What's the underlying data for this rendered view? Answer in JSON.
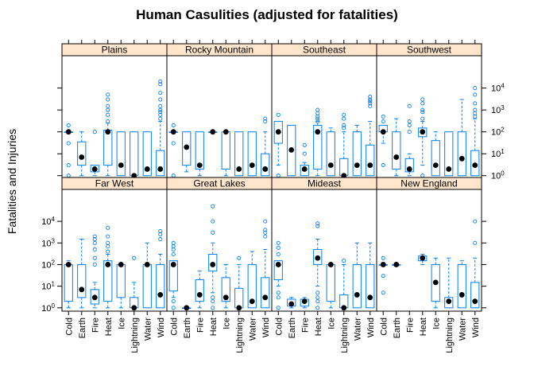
{
  "chart_data": {
    "type": "boxplot",
    "title": "Human Casulities (adjusted for fatalities)",
    "ylabel": "Fatalities and Injuries",
    "xlabel": "",
    "yscale": "log10",
    "ylim": [
      0.7,
      300000
    ],
    "y_ticks": [
      {
        "value": 1,
        "base": "10",
        "exp": "0"
      },
      {
        "value": 10,
        "base": "10",
        "exp": "1"
      },
      {
        "value": 100,
        "base": "10",
        "exp": "2"
      },
      {
        "value": 1000,
        "base": "10",
        "exp": "3"
      },
      {
        "value": 10000,
        "base": "10",
        "exp": "4"
      }
    ],
    "categories": [
      "Cold",
      "Earth",
      "Fire",
      "Heat",
      "Ice",
      "Lightning",
      "Water",
      "Wind"
    ],
    "panels": [
      {
        "region": "Plains",
        "row": 0,
        "col": 0,
        "boxes": [
          {
            "cat": "Cold",
            "q1": 100,
            "med": 100,
            "q3": 100,
            "lo": 100,
            "hi": 100,
            "out": [
              1,
              3,
              30,
              200
            ]
          },
          {
            "cat": "Earth",
            "q1": 3,
            "med": 7,
            "q3": 35,
            "lo": 1,
            "hi": 100,
            "out": []
          },
          {
            "cat": "Fire",
            "q1": 1.5,
            "med": 2,
            "q3": 3,
            "lo": 1,
            "hi": 3,
            "out": [
              100
            ]
          },
          {
            "cat": "Heat",
            "q1": 3,
            "med": 100,
            "q3": 120,
            "lo": 1,
            "hi": 250,
            "out": [
              300,
              600,
              1000,
              1500,
              3000,
              5000
            ]
          },
          {
            "cat": "Ice",
            "q1": 1,
            "med": 3,
            "q3": 100,
            "lo": 1,
            "hi": 100,
            "out": []
          },
          {
            "cat": "Lightning",
            "q1": 1,
            "med": 1,
            "q3": 100,
            "lo": 1,
            "hi": 100,
            "out": []
          },
          {
            "cat": "Water",
            "q1": 1,
            "med": 2,
            "q3": 100,
            "lo": 1,
            "hi": 100,
            "out": []
          },
          {
            "cat": "Wind",
            "q1": 1,
            "med": 2,
            "q3": 14,
            "lo": 1,
            "hi": 300,
            "out": [
              400,
              600,
              800,
              1000,
              1500,
              3000,
              6000,
              15000,
              20000
            ]
          }
        ]
      },
      {
        "region": "Rocky Mountain",
        "row": 0,
        "col": 1,
        "boxes": [
          {
            "cat": "Cold",
            "q1": 100,
            "med": 100,
            "q3": 100,
            "lo": 100,
            "hi": 100,
            "out": [
              1,
              30,
              200
            ]
          },
          {
            "cat": "Earth",
            "q1": 3,
            "med": 20,
            "q3": 100,
            "lo": 1.5,
            "hi": 100,
            "out": []
          },
          {
            "cat": "Fire",
            "q1": 2,
            "med": 3,
            "q3": 100,
            "lo": 1,
            "hi": 100,
            "out": []
          },
          {
            "cat": "Heat",
            "q1": 100,
            "med": 100,
            "q3": 100,
            "lo": 100,
            "hi": 100,
            "out": []
          },
          {
            "cat": "Ice",
            "q1": 2,
            "med": 100,
            "q3": 100,
            "lo": 1,
            "hi": 100,
            "out": []
          },
          {
            "cat": "Lightning",
            "q1": 1,
            "med": 2,
            "q3": 100,
            "lo": 1,
            "hi": 100,
            "out": []
          },
          {
            "cat": "Water",
            "q1": 1,
            "med": 3,
            "q3": 100,
            "lo": 1,
            "hi": 100,
            "out": []
          },
          {
            "cat": "Wind",
            "q1": 1,
            "med": 2,
            "q3": 10,
            "lo": 1,
            "hi": 100,
            "out": [
              300,
              400
            ]
          }
        ]
      },
      {
        "region": "Southeast",
        "row": 0,
        "col": 2,
        "boxes": [
          {
            "cat": "Cold",
            "q1": 30,
            "med": 100,
            "q3": 300,
            "lo": 3,
            "hi": 300,
            "out": [
              1,
              600
            ]
          },
          {
            "cat": "Earth",
            "q1": 1,
            "med": 15,
            "q3": 200,
            "lo": 1,
            "hi": 200,
            "out": []
          },
          {
            "cat": "Fire",
            "q1": 1,
            "med": 2,
            "q3": 3,
            "lo": 1,
            "hi": 4,
            "out": [
              10,
              25
            ]
          },
          {
            "cat": "Heat",
            "q1": 2,
            "med": 100,
            "q3": 200,
            "lo": 1,
            "hi": 300,
            "out": [
              300,
              400,
              500,
              700,
              1000
            ]
          },
          {
            "cat": "Ice",
            "q1": 1,
            "med": 3,
            "q3": 100,
            "lo": 1,
            "hi": 150,
            "out": []
          },
          {
            "cat": "Lightning",
            "q1": 1,
            "med": 1,
            "q3": 6,
            "lo": 1,
            "hi": 100,
            "out": [
              150,
              200,
              400,
              600
            ]
          },
          {
            "cat": "Water",
            "q1": 1,
            "med": 3,
            "q3": 100,
            "lo": 1,
            "hi": 200,
            "out": []
          },
          {
            "cat": "Wind",
            "q1": 1,
            "med": 3,
            "q3": 25,
            "lo": 1,
            "hi": 300,
            "out": [
              1500,
              2000,
              2500,
              3000,
              4000
            ]
          }
        ]
      },
      {
        "region": "Southwest",
        "row": 0,
        "col": 3,
        "boxes": [
          {
            "cat": "Cold",
            "q1": 100,
            "med": 100,
            "q3": 200,
            "lo": 30,
            "hi": 200,
            "out": [
              3,
              300,
              500
            ]
          },
          {
            "cat": "Earth",
            "q1": 2,
            "med": 7,
            "q3": 100,
            "lo": 1,
            "hi": 400,
            "out": []
          },
          {
            "cat": "Fire",
            "q1": 1.5,
            "med": 2,
            "q3": 6,
            "lo": 1,
            "hi": 10,
            "out": [
              100,
              200,
              300,
              1500
            ]
          },
          {
            "cat": "Heat",
            "q1": 60,
            "med": 100,
            "q3": 150,
            "lo": 3,
            "hi": 300,
            "out": [
              1,
              400,
              800,
              1000,
              2000,
              3000
            ]
          },
          {
            "cat": "Ice",
            "q1": 1,
            "med": 3,
            "q3": 40,
            "lo": 1,
            "hi": 100,
            "out": []
          },
          {
            "cat": "Lightning",
            "q1": 1,
            "med": 2,
            "q3": 100,
            "lo": 1,
            "hi": 100,
            "out": []
          },
          {
            "cat": "Water",
            "q1": 1,
            "med": 6,
            "q3": 100,
            "lo": 1,
            "hi": 3000,
            "out": []
          },
          {
            "cat": "Wind",
            "q1": 1,
            "med": 3,
            "q3": 14,
            "lo": 1,
            "hi": 400,
            "out": [
              500,
              700,
              1000,
              2000,
              5000,
              10000
            ]
          }
        ]
      },
      {
        "region": "Far West",
        "row": 1,
        "col": 0,
        "boxes": [
          {
            "cat": "Cold",
            "q1": 2,
            "med": 100,
            "q3": 100,
            "lo": 1,
            "hi": 150,
            "out": []
          },
          {
            "cat": "Earth",
            "q1": 3,
            "med": 7,
            "q3": 100,
            "lo": 1,
            "hi": 1500,
            "out": []
          },
          {
            "cat": "Fire",
            "q1": 1.5,
            "med": 3,
            "q3": 7,
            "lo": 1,
            "hi": 15,
            "out": [
              100,
              200,
              500,
              1000,
              1500,
              2000
            ]
          },
          {
            "cat": "Heat",
            "q1": 2,
            "med": 100,
            "q3": 150,
            "lo": 1,
            "hi": 300,
            "out": [
              400,
              700,
              1000,
              2000,
              5000
            ]
          },
          {
            "cat": "Ice",
            "q1": 3,
            "med": 100,
            "q3": 100,
            "lo": 1,
            "hi": 100,
            "out": []
          },
          {
            "cat": "Lightning",
            "q1": 1,
            "med": 1,
            "q3": 3,
            "lo": 1,
            "hi": 15,
            "out": [
              200
            ]
          },
          {
            "cat": "Water",
            "q1": 1,
            "med": 100,
            "q3": 100,
            "lo": 1,
            "hi": 1000,
            "out": []
          },
          {
            "cat": "Wind",
            "q1": 1,
            "med": 4,
            "q3": 100,
            "lo": 1,
            "hi": 300,
            "out": [
              1500,
              2500,
              3500
            ]
          }
        ]
      },
      {
        "region": "Great Lakes",
        "row": 1,
        "col": 1,
        "boxes": [
          {
            "cat": "Cold",
            "q1": 6,
            "med": 100,
            "q3": 150,
            "lo": 3,
            "hi": 150,
            "out": [
              1,
              2,
              300,
              500,
              700,
              1000
            ]
          },
          {
            "cat": "Earth",
            "q1": 1,
            "med": 1,
            "q3": 1,
            "lo": 1,
            "hi": 1,
            "out": []
          },
          {
            "cat": "Fire",
            "q1": 2,
            "med": 4,
            "q3": 20,
            "lo": 1,
            "hi": 50,
            "out": []
          },
          {
            "cat": "Heat",
            "q1": 50,
            "med": 100,
            "q3": 300,
            "lo": 5,
            "hi": 1000,
            "out": [
              1,
              2,
              3,
              3000,
              10000,
              50000
            ]
          },
          {
            "cat": "Ice",
            "q1": 2,
            "med": 3,
            "q3": 25,
            "lo": 1,
            "hi": 100,
            "out": []
          },
          {
            "cat": "Lightning",
            "q1": 1,
            "med": 1,
            "q3": 8,
            "lo": 1,
            "hi": 100,
            "out": [
              200
            ]
          },
          {
            "cat": "Water",
            "q1": 1,
            "med": 2,
            "q3": 100,
            "lo": 1,
            "hi": 400,
            "out": []
          },
          {
            "cat": "Wind",
            "q1": 1,
            "med": 3,
            "q3": 25,
            "lo": 1,
            "hi": 500,
            "out": [
              2000,
              3000,
              4000,
              10000
            ]
          }
        ]
      },
      {
        "region": "Mideast",
        "row": 1,
        "col": 2,
        "boxes": [
          {
            "cat": "Cold",
            "q1": 20,
            "med": 100,
            "q3": 150,
            "lo": 10,
            "hi": 150,
            "out": [
              1,
              3,
              5,
              300,
              600,
              1000
            ]
          },
          {
            "cat": "Earth",
            "q1": 1.2,
            "med": 1.5,
            "q3": 2.5,
            "lo": 1,
            "hi": 3,
            "out": []
          },
          {
            "cat": "Fire",
            "q1": 1.2,
            "med": 2,
            "q3": 2.5,
            "lo": 1,
            "hi": 3,
            "out": []
          },
          {
            "cat": "Heat",
            "q1": 100,
            "med": 200,
            "q3": 500,
            "lo": 10,
            "hi": 1500,
            "out": [
              1,
              2,
              3,
              5,
              6000,
              8000
            ]
          },
          {
            "cat": "Ice",
            "q1": 2,
            "med": 100,
            "q3": 100,
            "lo": 1,
            "hi": 100,
            "out": []
          },
          {
            "cat": "Lightning",
            "q1": 1,
            "med": 1,
            "q3": 4,
            "lo": 1,
            "hi": 100,
            "out": [
              150
            ]
          },
          {
            "cat": "Water",
            "q1": 1,
            "med": 4,
            "q3": 100,
            "lo": 1,
            "hi": 1000,
            "out": []
          },
          {
            "cat": "Wind",
            "q1": 1,
            "med": 3,
            "q3": 100,
            "lo": 1,
            "hi": 1000,
            "out": []
          }
        ]
      },
      {
        "region": "New England",
        "row": 1,
        "col": 3,
        "boxes": [
          {
            "cat": "Cold",
            "q1": 100,
            "med": 100,
            "q3": 100,
            "lo": 100,
            "hi": 100,
            "out": [
              5,
              30,
              200
            ]
          },
          {
            "cat": "Earth",
            "q1": 100,
            "med": 100,
            "q3": 100,
            "lo": 100,
            "hi": 100,
            "out": []
          },
          {
            "cat": "Heat",
            "q1": 150,
            "med": 200,
            "q3": 250,
            "lo": 100,
            "hi": 300,
            "out": []
          },
          {
            "cat": "Ice",
            "q1": 2,
            "med": 15,
            "q3": 100,
            "lo": 1,
            "hi": 200,
            "out": []
          },
          {
            "cat": "Lightning",
            "q1": 1,
            "med": 2,
            "q3": 3,
            "lo": 1,
            "hi": 200,
            "out": []
          },
          {
            "cat": "Water",
            "q1": 1,
            "med": 4,
            "q3": 100,
            "lo": 1,
            "hi": 150,
            "out": []
          },
          {
            "cat": "Wind",
            "q1": 1,
            "med": 2,
            "q3": 15,
            "lo": 1,
            "hi": 200,
            "out": [
              1000,
              10000
            ]
          }
        ]
      }
    ],
    "colors": {
      "box": "#0080ff",
      "strip_bg": "#ffe5cc",
      "median": "#000000",
      "frame": "#000000"
    }
  }
}
